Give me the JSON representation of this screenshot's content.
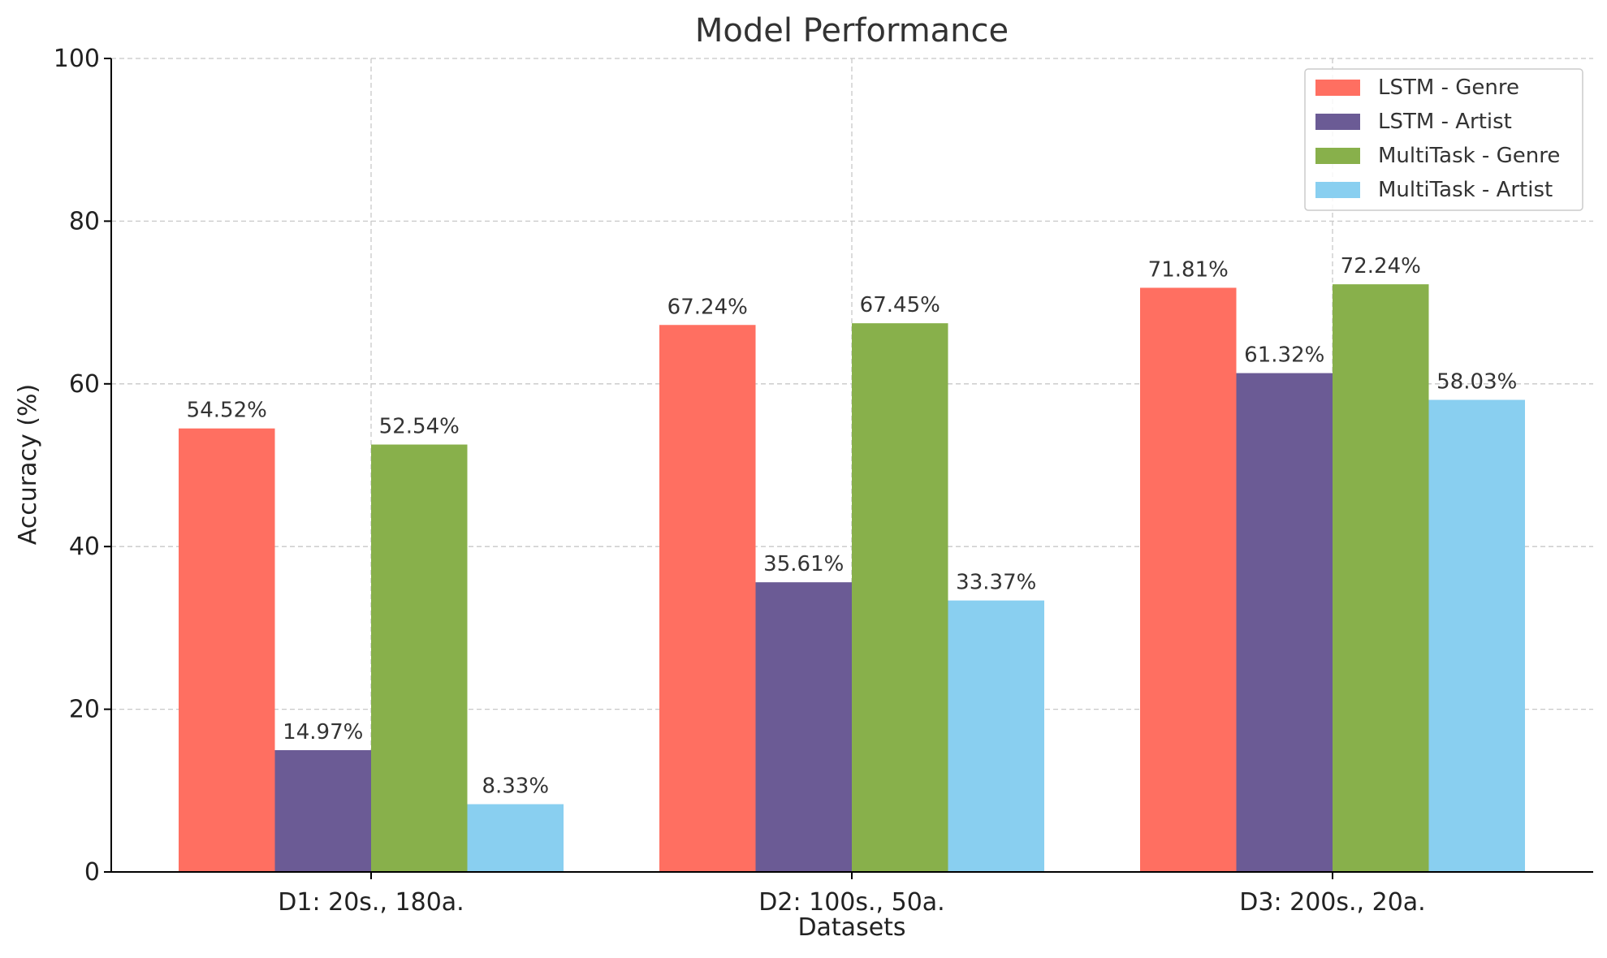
{
  "chart_data": {
    "type": "bar",
    "title": "Model Performance",
    "xlabel": "Datasets",
    "ylabel": "Accuracy (%)",
    "categories": [
      "D1: 20s., 180a.",
      "D2: 100s., 50a.",
      "D3: 200s., 20a."
    ],
    "series": [
      {
        "name": "LSTM - Genre",
        "values": [
          54.52,
          67.24,
          71.81
        ],
        "labels": [
          "54.52%",
          "67.24%",
          "71.81%"
        ],
        "color": "#ff6f61"
      },
      {
        "name": "LSTM - Artist",
        "values": [
          14.97,
          35.61,
          61.32
        ],
        "labels": [
          "14.97%",
          "35.61%",
          "61.32%"
        ],
        "color": "#6b5b95"
      },
      {
        "name": "MultiTask - Genre",
        "values": [
          52.54,
          67.45,
          72.24
        ],
        "labels": [
          "52.54%",
          "67.45%",
          "72.24%"
        ],
        "color": "#88b04b"
      },
      {
        "name": "MultiTask - Artist",
        "values": [
          8.33,
          33.37,
          58.03
        ],
        "labels": [
          "8.33%",
          "33.37%",
          "58.03%"
        ],
        "color": "#89cff0"
      }
    ],
    "ylim": [
      0,
      100
    ],
    "yticks": [
      "0",
      "20",
      "40",
      "60",
      "80",
      "100"
    ],
    "grid": true,
    "legend_position": "top-right"
  }
}
